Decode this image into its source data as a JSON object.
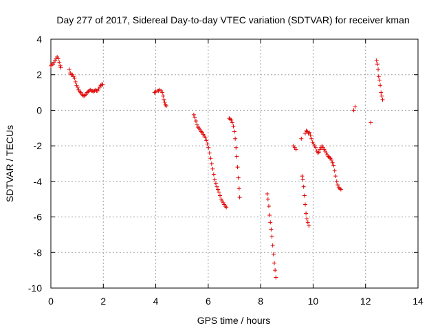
{
  "chart_data": {
    "type": "scatter",
    "title": "Day 277 of 2017, Sidereal Day-to-day VTEC variation (SDTVAR) for receiver kman",
    "xlabel": "GPS time / hours",
    "ylabel": "SDTVAR / TECUs",
    "xlim": [
      0,
      14
    ],
    "ylim": [
      -10,
      4
    ],
    "xticks": [
      0,
      2,
      4,
      6,
      8,
      10,
      12,
      14
    ],
    "yticks": [
      -10,
      -8,
      -6,
      -4,
      -2,
      0,
      2,
      4
    ],
    "grid": true,
    "marker": "plus",
    "color": "#e00000",
    "series": [
      {
        "name": "SDTVAR",
        "points": [
          [
            0.0,
            2.5
          ],
          [
            0.04,
            2.6
          ],
          [
            0.08,
            2.6
          ],
          [
            0.12,
            2.7
          ],
          [
            0.16,
            2.8
          ],
          [
            0.2,
            2.9
          ],
          [
            0.24,
            3.0
          ],
          [
            0.28,
            2.9
          ],
          [
            0.32,
            2.7
          ],
          [
            0.36,
            2.5
          ],
          [
            0.38,
            2.4
          ],
          [
            0.7,
            2.3
          ],
          [
            0.74,
            2.1
          ],
          [
            0.78,
            2.0
          ],
          [
            0.82,
            2.0
          ],
          [
            0.86,
            1.9
          ],
          [
            0.9,
            1.8
          ],
          [
            0.94,
            1.6
          ],
          [
            0.98,
            1.4
          ],
          [
            1.02,
            1.3
          ],
          [
            1.06,
            1.15
          ],
          [
            1.1,
            1.05
          ],
          [
            1.14,
            1.0
          ],
          [
            1.18,
            0.9
          ],
          [
            1.22,
            0.85
          ],
          [
            1.26,
            0.8
          ],
          [
            1.3,
            0.85
          ],
          [
            1.34,
            0.9
          ],
          [
            1.38,
            1.0
          ],
          [
            1.42,
            1.05
          ],
          [
            1.46,
            1.1
          ],
          [
            1.5,
            1.15
          ],
          [
            1.54,
            1.1
          ],
          [
            1.58,
            1.1
          ],
          [
            1.62,
            1.05
          ],
          [
            1.66,
            1.1
          ],
          [
            1.7,
            1.15
          ],
          [
            1.74,
            1.1
          ],
          [
            1.78,
            1.1
          ],
          [
            1.82,
            1.2
          ],
          [
            1.86,
            1.3
          ],
          [
            1.9,
            1.4
          ],
          [
            1.94,
            1.45
          ],
          [
            1.98,
            1.45
          ],
          [
            3.95,
            1.0
          ],
          [
            4.0,
            1.05
          ],
          [
            4.05,
            1.1
          ],
          [
            4.1,
            1.1
          ],
          [
            4.15,
            1.15
          ],
          [
            4.2,
            1.1
          ],
          [
            4.25,
            1.0
          ],
          [
            4.28,
            0.8
          ],
          [
            4.31,
            0.6
          ],
          [
            4.34,
            0.45
          ],
          [
            4.37,
            0.3
          ],
          [
            4.4,
            0.25
          ],
          [
            5.45,
            -0.25
          ],
          [
            5.49,
            -0.4
          ],
          [
            5.53,
            -0.6
          ],
          [
            5.57,
            -0.8
          ],
          [
            5.61,
            -0.95
          ],
          [
            5.65,
            -1.0
          ],
          [
            5.69,
            -1.1
          ],
          [
            5.73,
            -1.2
          ],
          [
            5.77,
            -1.25
          ],
          [
            5.81,
            -1.35
          ],
          [
            5.85,
            -1.45
          ],
          [
            5.89,
            -1.55
          ],
          [
            5.93,
            -1.7
          ],
          [
            5.97,
            -1.9
          ],
          [
            6.01,
            -2.1
          ],
          [
            6.05,
            -2.4
          ],
          [
            6.09,
            -2.7
          ],
          [
            6.13,
            -3.0
          ],
          [
            6.17,
            -3.3
          ],
          [
            6.21,
            -3.6
          ],
          [
            6.25,
            -3.9
          ],
          [
            6.29,
            -4.1
          ],
          [
            6.33,
            -4.3
          ],
          [
            6.37,
            -4.45
          ],
          [
            6.41,
            -4.6
          ],
          [
            6.45,
            -4.8
          ],
          [
            6.49,
            -5.0
          ],
          [
            6.53,
            -5.1
          ],
          [
            6.57,
            -5.2
          ],
          [
            6.61,
            -5.3
          ],
          [
            6.65,
            -5.4
          ],
          [
            6.69,
            -5.45
          ],
          [
            6.8,
            -0.45
          ],
          [
            6.84,
            -0.5
          ],
          [
            6.88,
            -0.55
          ],
          [
            6.92,
            -0.7
          ],
          [
            6.96,
            -0.9
          ],
          [
            7.0,
            -1.2
          ],
          [
            7.03,
            -1.6
          ],
          [
            7.06,
            -2.1
          ],
          [
            7.09,
            -2.6
          ],
          [
            7.12,
            -3.2
          ],
          [
            7.15,
            -3.8
          ],
          [
            7.18,
            -4.4
          ],
          [
            7.2,
            -4.9
          ],
          [
            8.25,
            -4.7
          ],
          [
            8.28,
            -5.0
          ],
          [
            8.31,
            -5.4
          ],
          [
            8.34,
            -5.9
          ],
          [
            8.37,
            -6.3
          ],
          [
            8.4,
            -6.7
          ],
          [
            8.43,
            -7.1
          ],
          [
            8.46,
            -7.6
          ],
          [
            8.49,
            -8.1
          ],
          [
            8.52,
            -8.6
          ],
          [
            8.55,
            -9.0
          ],
          [
            8.58,
            -9.4
          ],
          [
            9.25,
            -2.0
          ],
          [
            9.3,
            -2.1
          ],
          [
            9.35,
            -2.2
          ],
          [
            9.55,
            -1.6
          ],
          [
            9.58,
            -3.7
          ],
          [
            9.61,
            -3.9
          ],
          [
            9.64,
            -4.3
          ],
          [
            9.67,
            -4.8
          ],
          [
            9.7,
            -5.3
          ],
          [
            9.73,
            -5.8
          ],
          [
            9.76,
            -6.1
          ],
          [
            9.8,
            -6.3
          ],
          [
            9.84,
            -6.5
          ],
          [
            9.7,
            -1.3
          ],
          [
            9.74,
            -1.15
          ],
          [
            9.78,
            -1.2
          ],
          [
            9.82,
            -1.3
          ],
          [
            9.86,
            -1.25
          ],
          [
            9.9,
            -1.4
          ],
          [
            9.94,
            -1.6
          ],
          [
            9.98,
            -1.8
          ],
          [
            10.02,
            -1.9
          ],
          [
            10.06,
            -2.0
          ],
          [
            10.1,
            -2.1
          ],
          [
            10.14,
            -2.3
          ],
          [
            10.18,
            -2.4
          ],
          [
            10.22,
            -2.35
          ],
          [
            10.26,
            -2.2
          ],
          [
            10.3,
            -2.1
          ],
          [
            10.34,
            -2.0
          ],
          [
            10.38,
            -2.1
          ],
          [
            10.42,
            -2.2
          ],
          [
            10.46,
            -2.3
          ],
          [
            10.5,
            -2.4
          ],
          [
            10.54,
            -2.5
          ],
          [
            10.58,
            -2.6
          ],
          [
            10.62,
            -2.65
          ],
          [
            10.66,
            -2.7
          ],
          [
            10.7,
            -2.8
          ],
          [
            10.74,
            -2.95
          ],
          [
            10.78,
            -3.1
          ],
          [
            10.82,
            -3.4
          ],
          [
            10.86,
            -3.7
          ],
          [
            10.9,
            -4.0
          ],
          [
            10.94,
            -4.2
          ],
          [
            10.98,
            -4.35
          ],
          [
            11.02,
            -4.4
          ],
          [
            11.06,
            -4.45
          ],
          [
            11.55,
            0.0
          ],
          [
            11.6,
            0.2
          ],
          [
            12.2,
            -0.7
          ],
          [
            12.42,
            2.8
          ],
          [
            12.45,
            2.6
          ],
          [
            12.48,
            2.3
          ],
          [
            12.5,
            1.9
          ],
          [
            12.53,
            1.7
          ],
          [
            12.56,
            1.4
          ],
          [
            12.59,
            1.0
          ],
          [
            12.62,
            0.8
          ],
          [
            12.65,
            0.6
          ]
        ]
      }
    ]
  }
}
